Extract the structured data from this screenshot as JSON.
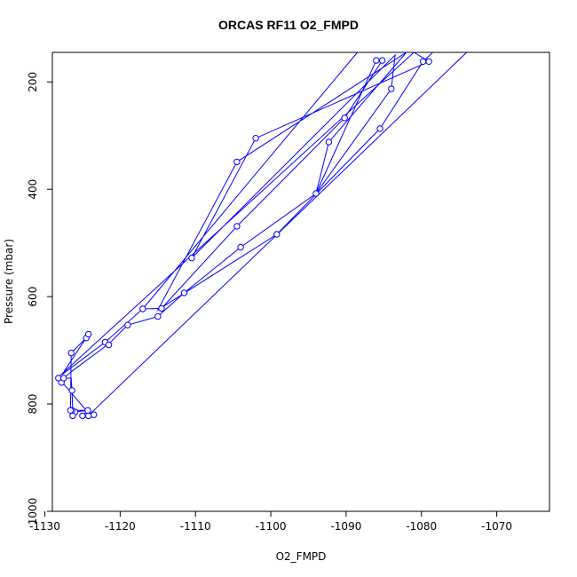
{
  "chart_data": {
    "type": "line",
    "title": "ORCAS RF11 O2_FMPD",
    "xlabel": "O2_FMPD",
    "ylabel": "Pressure (mbar)",
    "xlim": [
      -1129,
      -1063
    ],
    "ylim": [
      1000,
      145
    ],
    "y_reversed": true,
    "x_ticks": [
      -1130,
      -1120,
      -1110,
      -1100,
      -1090,
      -1080,
      -1070
    ],
    "y_ticks": [
      200,
      400,
      600,
      800,
      1000
    ],
    "line_color": "#0000ff",
    "markers": "open-circle",
    "grid": false,
    "series": [
      {
        "points": [
          [
            -1074,
            145
          ],
          [
            -1123.5,
            812
          ],
          [
            -1124.2,
            820
          ],
          [
            -1125,
            822
          ],
          [
            -1124.3,
            812
          ],
          [
            -1126,
            815
          ],
          [
            -1126.5,
            818
          ],
          [
            -1126.3,
            812
          ],
          [
            -1126.4,
            775
          ],
          [
            -1126.5,
            752
          ],
          [
            -1128.2,
            752
          ],
          [
            -1127.5,
            752
          ],
          [
            -1126.5,
            740
          ],
          [
            -1121.5,
            688
          ],
          [
            -1119,
            653
          ],
          [
            -1115,
            637
          ],
          [
            -1111.5,
            593
          ],
          [
            -1104,
            508
          ],
          [
            -1094,
            408
          ],
          [
            -1084,
            213
          ],
          [
            -1083.5,
            150
          ],
          [
            -1110.5,
            528
          ],
          [
            -1102,
            305
          ],
          [
            -1079,
            162
          ],
          [
            -1081,
            145
          ],
          [
            -1128.2,
            750
          ],
          [
            -1127.8,
            758
          ],
          [
            -1124.5,
            812
          ],
          [
            -1126.2,
            812
          ],
          [
            -1126.6,
            812
          ],
          [
            -1126.5,
            705
          ],
          [
            -1124.5,
            677
          ],
          [
            -1124.2,
            670
          ],
          [
            -1127.7,
            745
          ],
          [
            -1122,
            685
          ],
          [
            -1117,
            623
          ],
          [
            -1088.5,
            145
          ],
          [
            -1117,
            623
          ],
          [
            -1114.5,
            622
          ],
          [
            -1104.5,
            469
          ],
          [
            -1090.2,
            267
          ],
          [
            -1085.2,
            160
          ],
          [
            -1086,
            160
          ],
          [
            -1094,
            408
          ],
          [
            -1092.3,
            312
          ],
          [
            -1082,
            145
          ],
          [
            -1104.5,
            349
          ],
          [
            -1115,
            625
          ],
          [
            -1099.2,
            484
          ],
          [
            -1085.5,
            287
          ],
          [
            -1079.8,
            162
          ],
          [
            -1078.5,
            145
          ]
        ],
        "markers_on": [
          [
            -1123.5,
            820
          ],
          [
            -1124.2,
            822
          ],
          [
            -1125,
            822
          ],
          [
            -1124.3,
            812
          ],
          [
            -1126,
            815
          ],
          [
            -1126.3,
            822
          ],
          [
            -1126.4,
            812
          ],
          [
            -1126.6,
            812
          ],
          [
            -1126.4,
            775
          ],
          [
            -1128.2,
            752
          ],
          [
            -1127.8,
            760
          ],
          [
            -1127.5,
            752
          ],
          [
            -1126.5,
            705
          ],
          [
            -1124.5,
            677
          ],
          [
            -1124.2,
            670
          ],
          [
            -1122,
            685
          ],
          [
            -1121.5,
            690
          ],
          [
            -1119,
            653
          ],
          [
            -1117,
            623
          ],
          [
            -1115,
            637
          ],
          [
            -1114.5,
            622
          ],
          [
            -1111.5,
            593
          ],
          [
            -1110.5,
            528
          ],
          [
            -1104.5,
            469
          ],
          [
            -1104,
            508
          ],
          [
            -1104.5,
            349
          ],
          [
            -1102,
            305
          ],
          [
            -1099.2,
            484
          ],
          [
            -1094,
            408
          ],
          [
            -1092.3,
            312
          ],
          [
            -1090.2,
            267
          ],
          [
            -1085.5,
            287
          ],
          [
            -1084,
            213
          ],
          [
            -1086,
            160
          ],
          [
            -1085.2,
            160
          ],
          [
            -1079.8,
            162
          ],
          [
            -1079,
            162
          ]
        ]
      }
    ]
  }
}
